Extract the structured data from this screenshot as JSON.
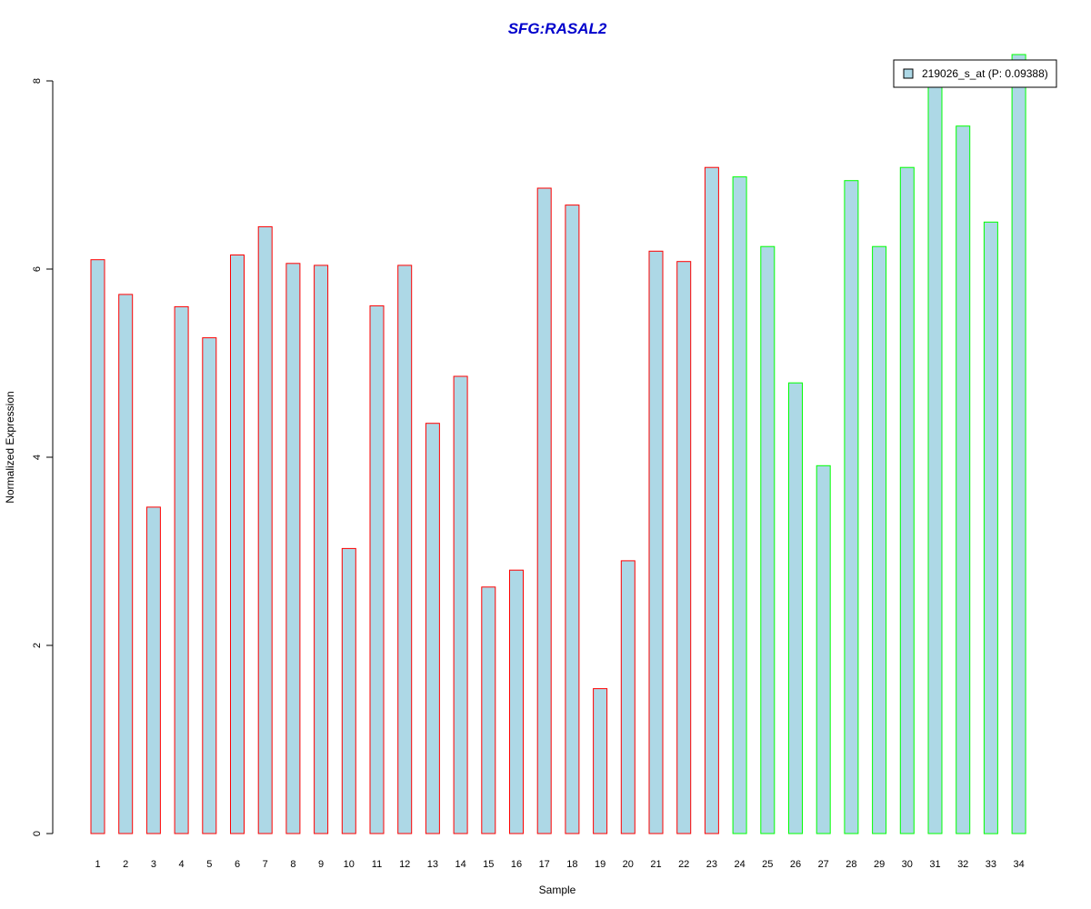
{
  "chart_data": {
    "type": "bar",
    "title": "SFG:RASAL2",
    "xlabel": "Sample",
    "ylabel": "Normalized Expression",
    "categories": [
      "1",
      "2",
      "3",
      "4",
      "5",
      "6",
      "7",
      "8",
      "9",
      "10",
      "11",
      "12",
      "13",
      "14",
      "15",
      "16",
      "17",
      "18",
      "19",
      "20",
      "21",
      "22",
      "23",
      "24",
      "25",
      "26",
      "27",
      "28",
      "29",
      "30",
      "31",
      "32",
      "33",
      "34"
    ],
    "series": [
      {
        "name": "219026_s_at (P: 0.09388)",
        "values": [
          6.1,
          5.73,
          3.47,
          5.6,
          5.27,
          6.15,
          6.45,
          6.06,
          6.04,
          3.03,
          5.61,
          6.04,
          4.36,
          4.86,
          2.62,
          2.8,
          6.86,
          6.68,
          1.54,
          2.9,
          6.19,
          6.08,
          7.08,
          6.98,
          6.24,
          4.79,
          3.91,
          6.94,
          6.24,
          7.08,
          7.98,
          7.52,
          6.5,
          8.28
        ]
      }
    ],
    "bar_fill": "#add8e6",
    "group_outline_colors": [
      "#ff0000",
      "#ff0000",
      "#ff0000",
      "#ff0000",
      "#ff0000",
      "#ff0000",
      "#ff0000",
      "#ff0000",
      "#ff0000",
      "#ff0000",
      "#ff0000",
      "#ff0000",
      "#ff0000",
      "#ff0000",
      "#ff0000",
      "#ff0000",
      "#ff0000",
      "#ff0000",
      "#ff0000",
      "#ff0000",
      "#ff0000",
      "#ff0000",
      "#ff0000",
      "#00ff00",
      "#00ff00",
      "#00ff00",
      "#00ff00",
      "#00ff00",
      "#00ff00",
      "#00ff00",
      "#00ff00",
      "#00ff00",
      "#00ff00",
      "#00ff00"
    ],
    "title_color": "#0000cc",
    "yticks": [
      0,
      2,
      4,
      6,
      8
    ],
    "ylim": [
      0,
      8
    ],
    "grid": false,
    "legend_position": "top-right"
  }
}
